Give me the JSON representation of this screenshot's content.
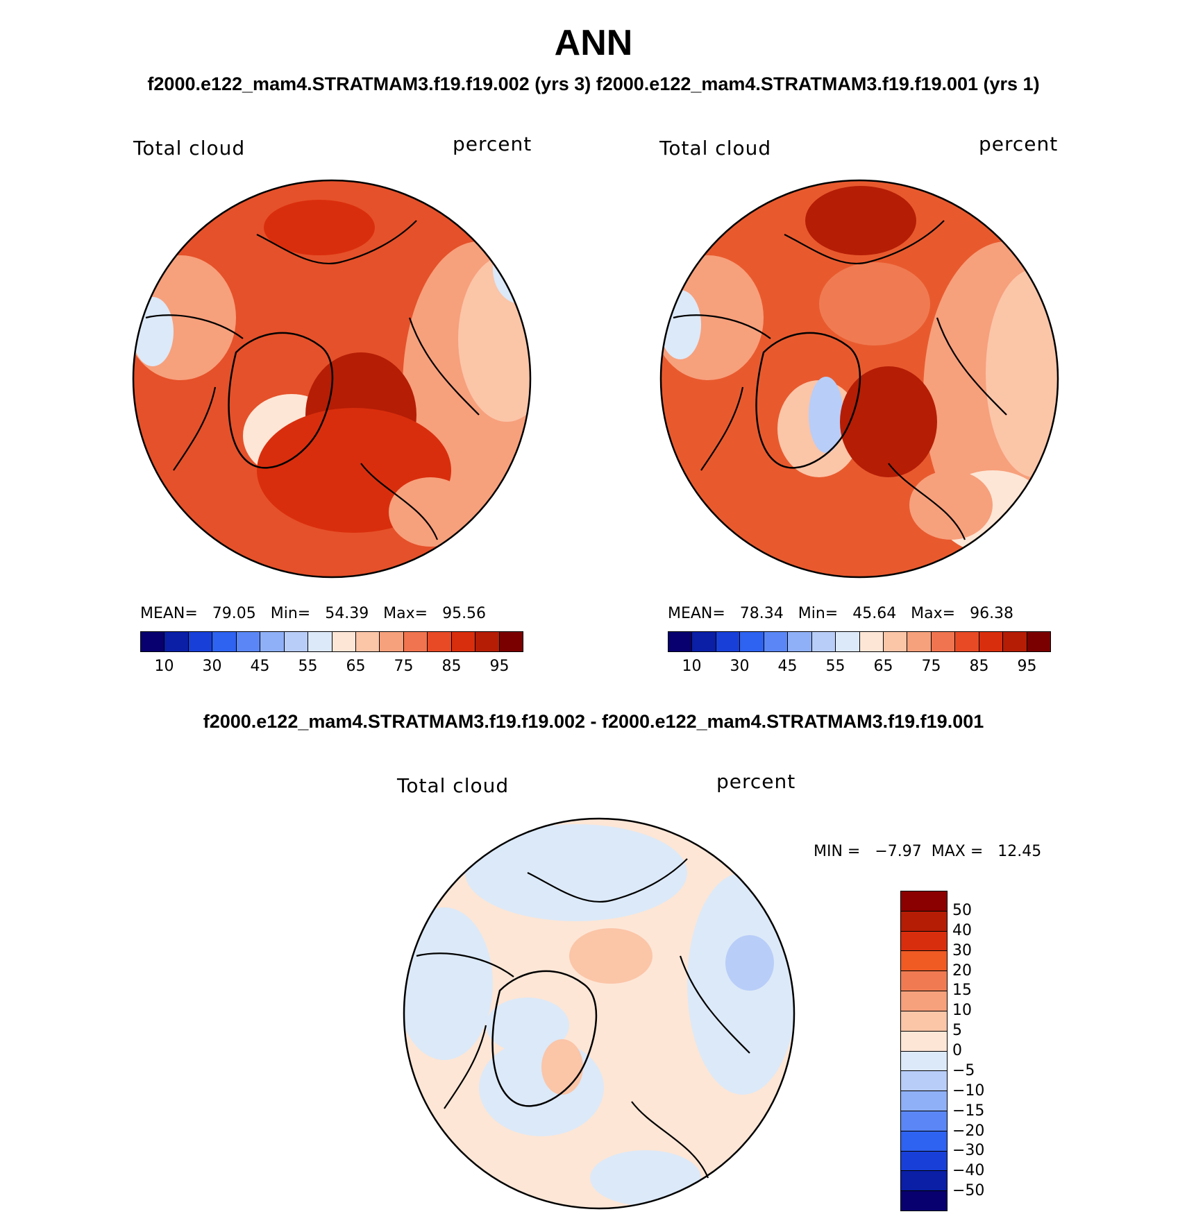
{
  "figure": {
    "title": "ANN",
    "subtitle_left": "f2000.e122_mam4.STRATMAM3.f19.f19.002 (yrs 3)",
    "subtitle_right": "f2000.e122_mam4.STRATMAM3.f19.f19.001 (yrs 1)",
    "diff_title": "f2000.e122_mam4.STRATMAM3.f19.f19.002 - f2000.e122_mam4.STRATMAM3.f19.f19.001"
  },
  "panels": [
    {
      "variable": "Total cloud",
      "units": "percent",
      "stats_text": "MEAN=   79.05   Min=   54.39   Max=   95.56",
      "stats": {
        "mean": 79.05,
        "min": 54.39,
        "max": 95.56
      }
    },
    {
      "variable": "Total cloud",
      "units": "percent",
      "stats_text": "MEAN=   78.34   Min=   45.64   Max=   96.38",
      "stats": {
        "mean": 78.34,
        "min": 45.64,
        "max": 96.38
      }
    }
  ],
  "diff_panel": {
    "variable": "Total cloud",
    "units": "percent",
    "stats_text": "MIN =   −7.97  MAX =   12.45",
    "stats": {
      "min": -7.97,
      "max": 12.45
    }
  },
  "colorbar_main": {
    "colors": [
      "#08006e",
      "#0a1fa6",
      "#1840d8",
      "#2e62f0",
      "#5a87f5",
      "#8fb0f7",
      "#b8cdf8",
      "#dce9f8",
      "#fde6d6",
      "#fbc5a8",
      "#f7a07c",
      "#f0744f",
      "#e84a26",
      "#d92e0d",
      "#b51d05",
      "#7a0000"
    ],
    "tick_labels": [
      "10",
      "30",
      "45",
      "55",
      "65",
      "75",
      "85",
      "95"
    ]
  },
  "colorbar_diff": {
    "colors_top_to_bottom": [
      "#8b0000",
      "#b51d05",
      "#d92e0d",
      "#f05a23",
      "#f07b52",
      "#f7a07c",
      "#fbc5a8",
      "#fde6d6",
      "#dce9f8",
      "#b8cdf8",
      "#8fb0f7",
      "#5a87f5",
      "#2e62f0",
      "#1840d8",
      "#0a1fa6",
      "#08006e"
    ],
    "tick_labels": [
      "50",
      "40",
      "30",
      "20",
      "15",
      "10",
      "5",
      "0",
      "−5",
      "−10",
      "−15",
      "−20",
      "−30",
      "−40",
      "−50"
    ]
  },
  "maps": {
    "background_left": "#e5512a",
    "background_right": "#e85a2e",
    "background_diff": "#fde6d6"
  }
}
